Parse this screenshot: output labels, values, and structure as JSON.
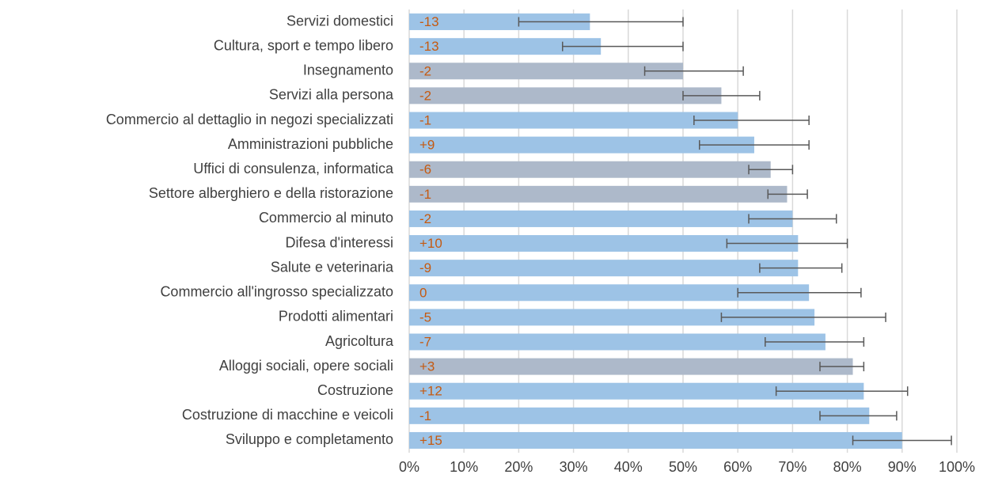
{
  "chart_data": {
    "type": "bar",
    "orientation": "horizontal",
    "categories": [
      "Servizi domestici",
      "Cultura, sport e tempo libero",
      "Insegnamento",
      "Servizi alla persona",
      "Commercio al dettaglio in negozi specializzati",
      "Amministrazioni pubbliche",
      "Uffici di consulenza, informatica",
      "Settore alberghiero e della ristorazione",
      "Commercio al minuto",
      "Difesa d'interessi",
      "Salute e veterinaria",
      "Commercio all'ingrosso specializzato",
      "Prodotti alimentari",
      "Agricoltura",
      "Alloggi sociali, opere sociali",
      "Costruzione",
      "Costruzione di macchine e veicoli",
      "Sviluppo e completamento"
    ],
    "values": [
      33,
      35,
      50,
      57,
      60,
      63,
      66,
      69,
      70,
      71,
      71,
      73,
      74,
      76,
      81,
      83,
      84,
      90
    ],
    "error_low": [
      20,
      28,
      43,
      50,
      52,
      53,
      62,
      65.5,
      62,
      58,
      64,
      60,
      57,
      65,
      75,
      67,
      75,
      81
    ],
    "error_high": [
      50,
      50,
      61,
      64,
      73,
      73,
      70,
      72.7,
      78,
      80,
      79,
      82.5,
      87,
      83,
      83,
      91,
      89,
      99
    ],
    "colors": [
      "#9dc3e6",
      "#9dc3e6",
      "#adb9ca",
      "#adb9ca",
      "#9dc3e6",
      "#9dc3e6",
      "#adb9ca",
      "#adb9ca",
      "#9dc3e6",
      "#9dc3e6",
      "#9dc3e6",
      "#9dc3e6",
      "#9dc3e6",
      "#9dc3e6",
      "#adb9ca",
      "#9dc3e6",
      "#9dc3e6",
      "#9dc3e6"
    ],
    "change_labels": [
      "-13",
      "-13",
      "-2",
      "-2",
      "-1",
      "+9",
      "-6",
      "-1",
      "-2",
      "+10",
      "-9",
      "0",
      "-5",
      "-7",
      "+3",
      "+12",
      "-1",
      "+15"
    ],
    "xlim": [
      0,
      100
    ],
    "xticks": [
      {
        "value": 0,
        "label": "0%"
      },
      {
        "value": 10,
        "label": "10%"
      },
      {
        "value": 20,
        "label": "20%"
      },
      {
        "value": 30,
        "label": "30%"
      },
      {
        "value": 40,
        "label": "40%"
      },
      {
        "value": 50,
        "label": "50%"
      },
      {
        "value": 60,
        "label": "60%"
      },
      {
        "value": 70,
        "label": "70%"
      },
      {
        "value": 80,
        "label": "80%"
      },
      {
        "value": 90,
        "label": "90%"
      },
      {
        "value": 100,
        "label": "100%"
      }
    ],
    "grid": true
  }
}
